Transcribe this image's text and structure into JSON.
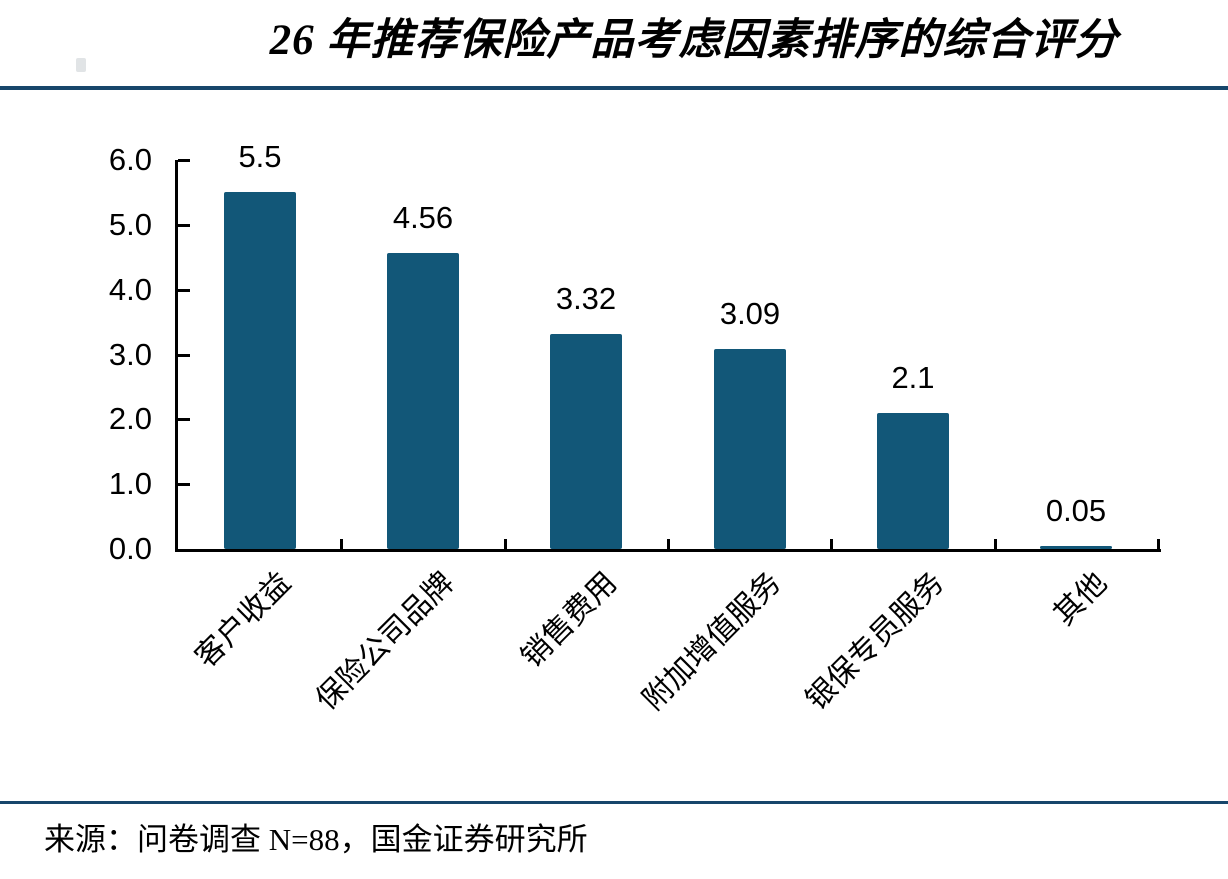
{
  "title": "26 年推荐保险产品考虑因素排序的综合评分",
  "source": {
    "text": "来源：问卷调查 N=88，国金证券研究所"
  },
  "colors": {
    "bar": "#125778",
    "divider": "#17466b",
    "axis": "#000000",
    "text": "#000000",
    "background": "#ffffff"
  },
  "chart_data": {
    "type": "bar",
    "title": "26 年推荐保险产品考虑因素排序的综合评分",
    "categories": [
      "客户收益",
      "保险公司品牌",
      "销售费用",
      "附加增值服务",
      "银保专员服务",
      "其他"
    ],
    "values": [
      5.5,
      4.56,
      3.32,
      3.09,
      2.1,
      0.05
    ],
    "value_labels": [
      "5.5",
      "4.56",
      "3.32",
      "3.09",
      "2.1",
      "0.05"
    ],
    "xlabel": "",
    "ylabel": "",
    "ylim": [
      0,
      6
    ],
    "y_tick_labels": [
      "0.0",
      "1.0",
      "2.0",
      "3.0",
      "4.0",
      "5.0",
      "6.0"
    ],
    "y_tick_step": 1.0,
    "grid": false,
    "legend": "none",
    "bar_color": "#125778",
    "source": "来源：问卷调查 N=88，国金证券研究所"
  }
}
